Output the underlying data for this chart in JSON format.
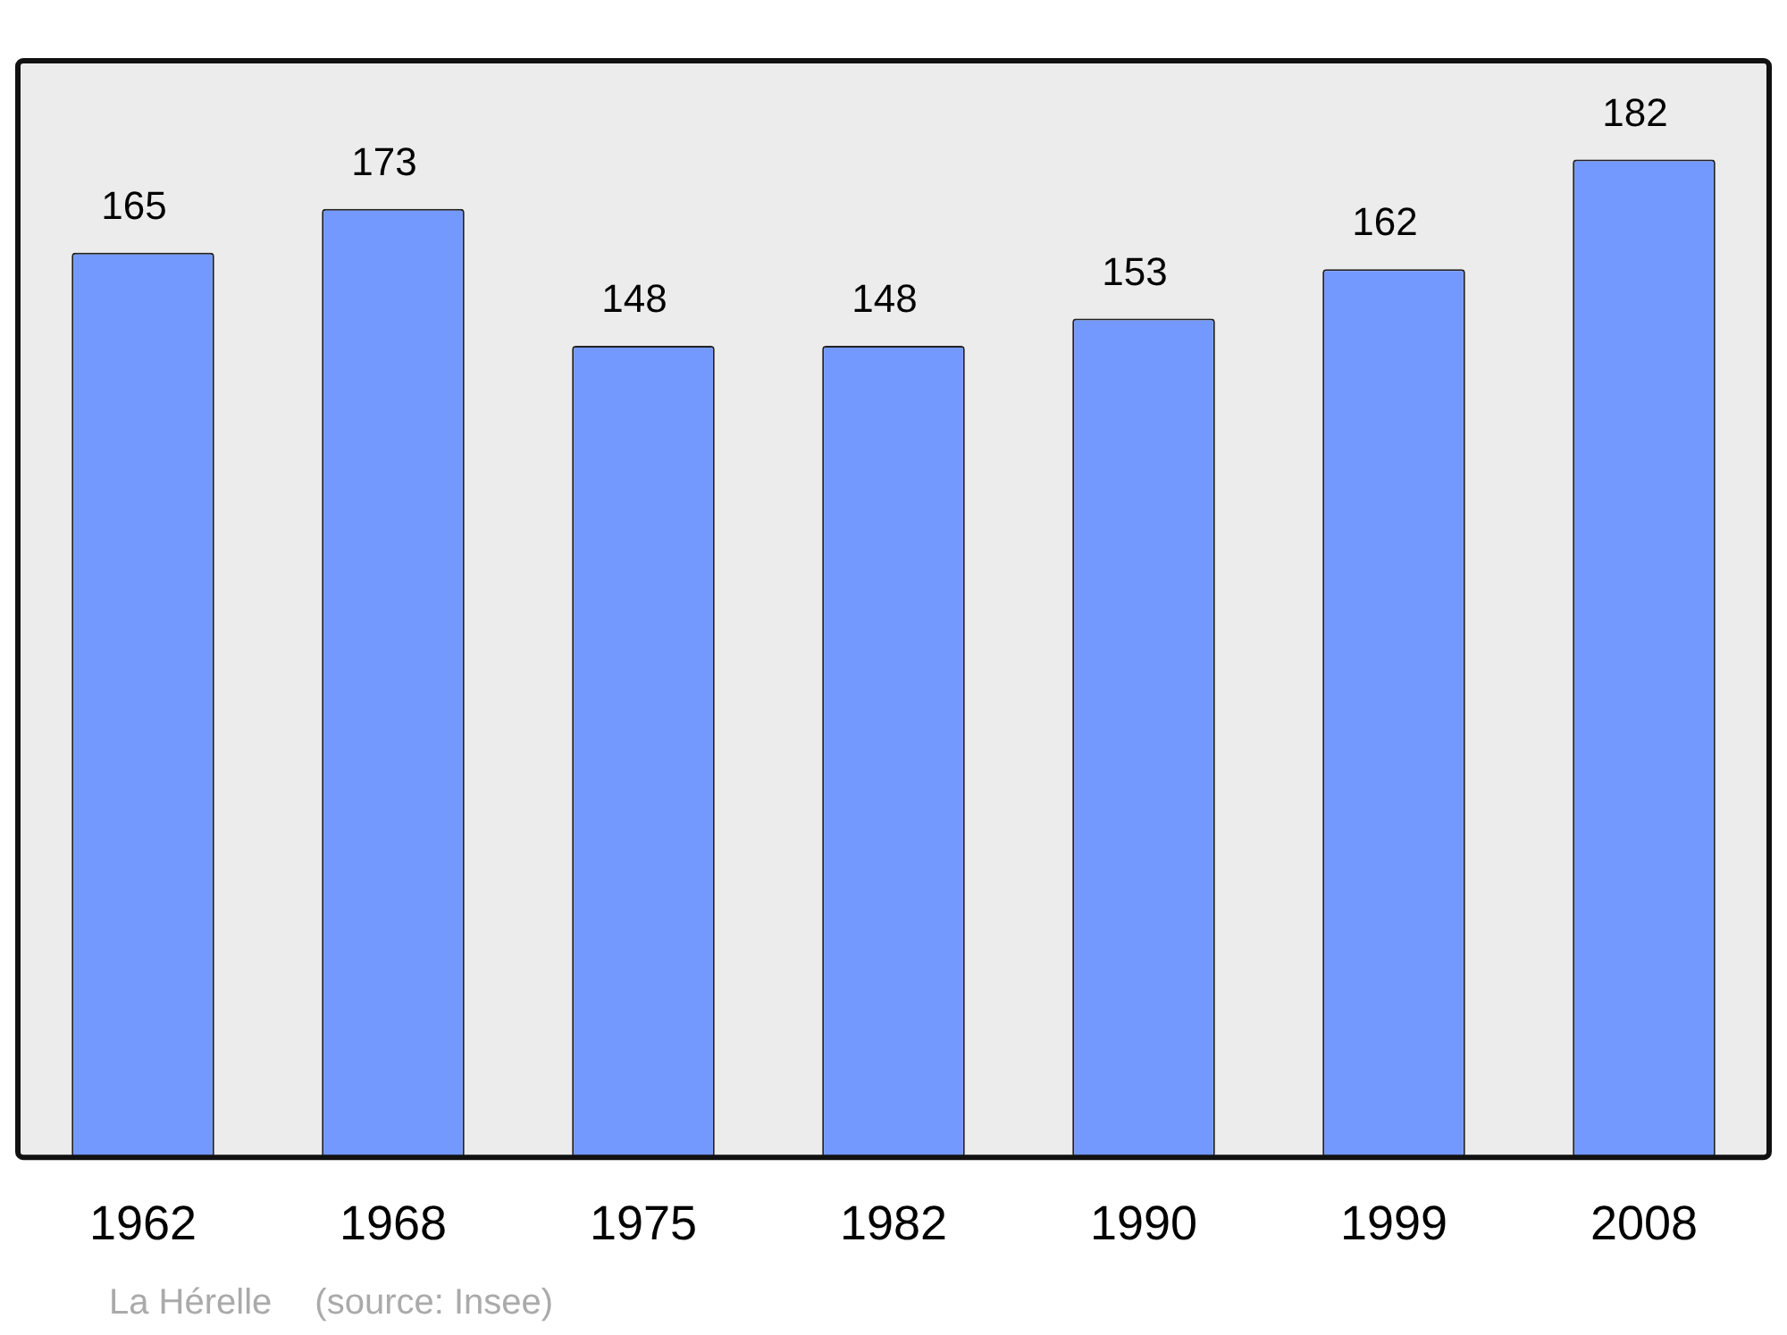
{
  "chart_data": {
    "type": "bar",
    "categories": [
      "1962",
      "1968",
      "1975",
      "1982",
      "1990",
      "1999",
      "2008"
    ],
    "values": [
      165,
      173,
      148,
      148,
      153,
      162,
      182
    ],
    "color": "#7399ff",
    "data_labels": true,
    "annotations": [
      "La Hérelle",
      "(source: Insee)"
    ]
  }
}
